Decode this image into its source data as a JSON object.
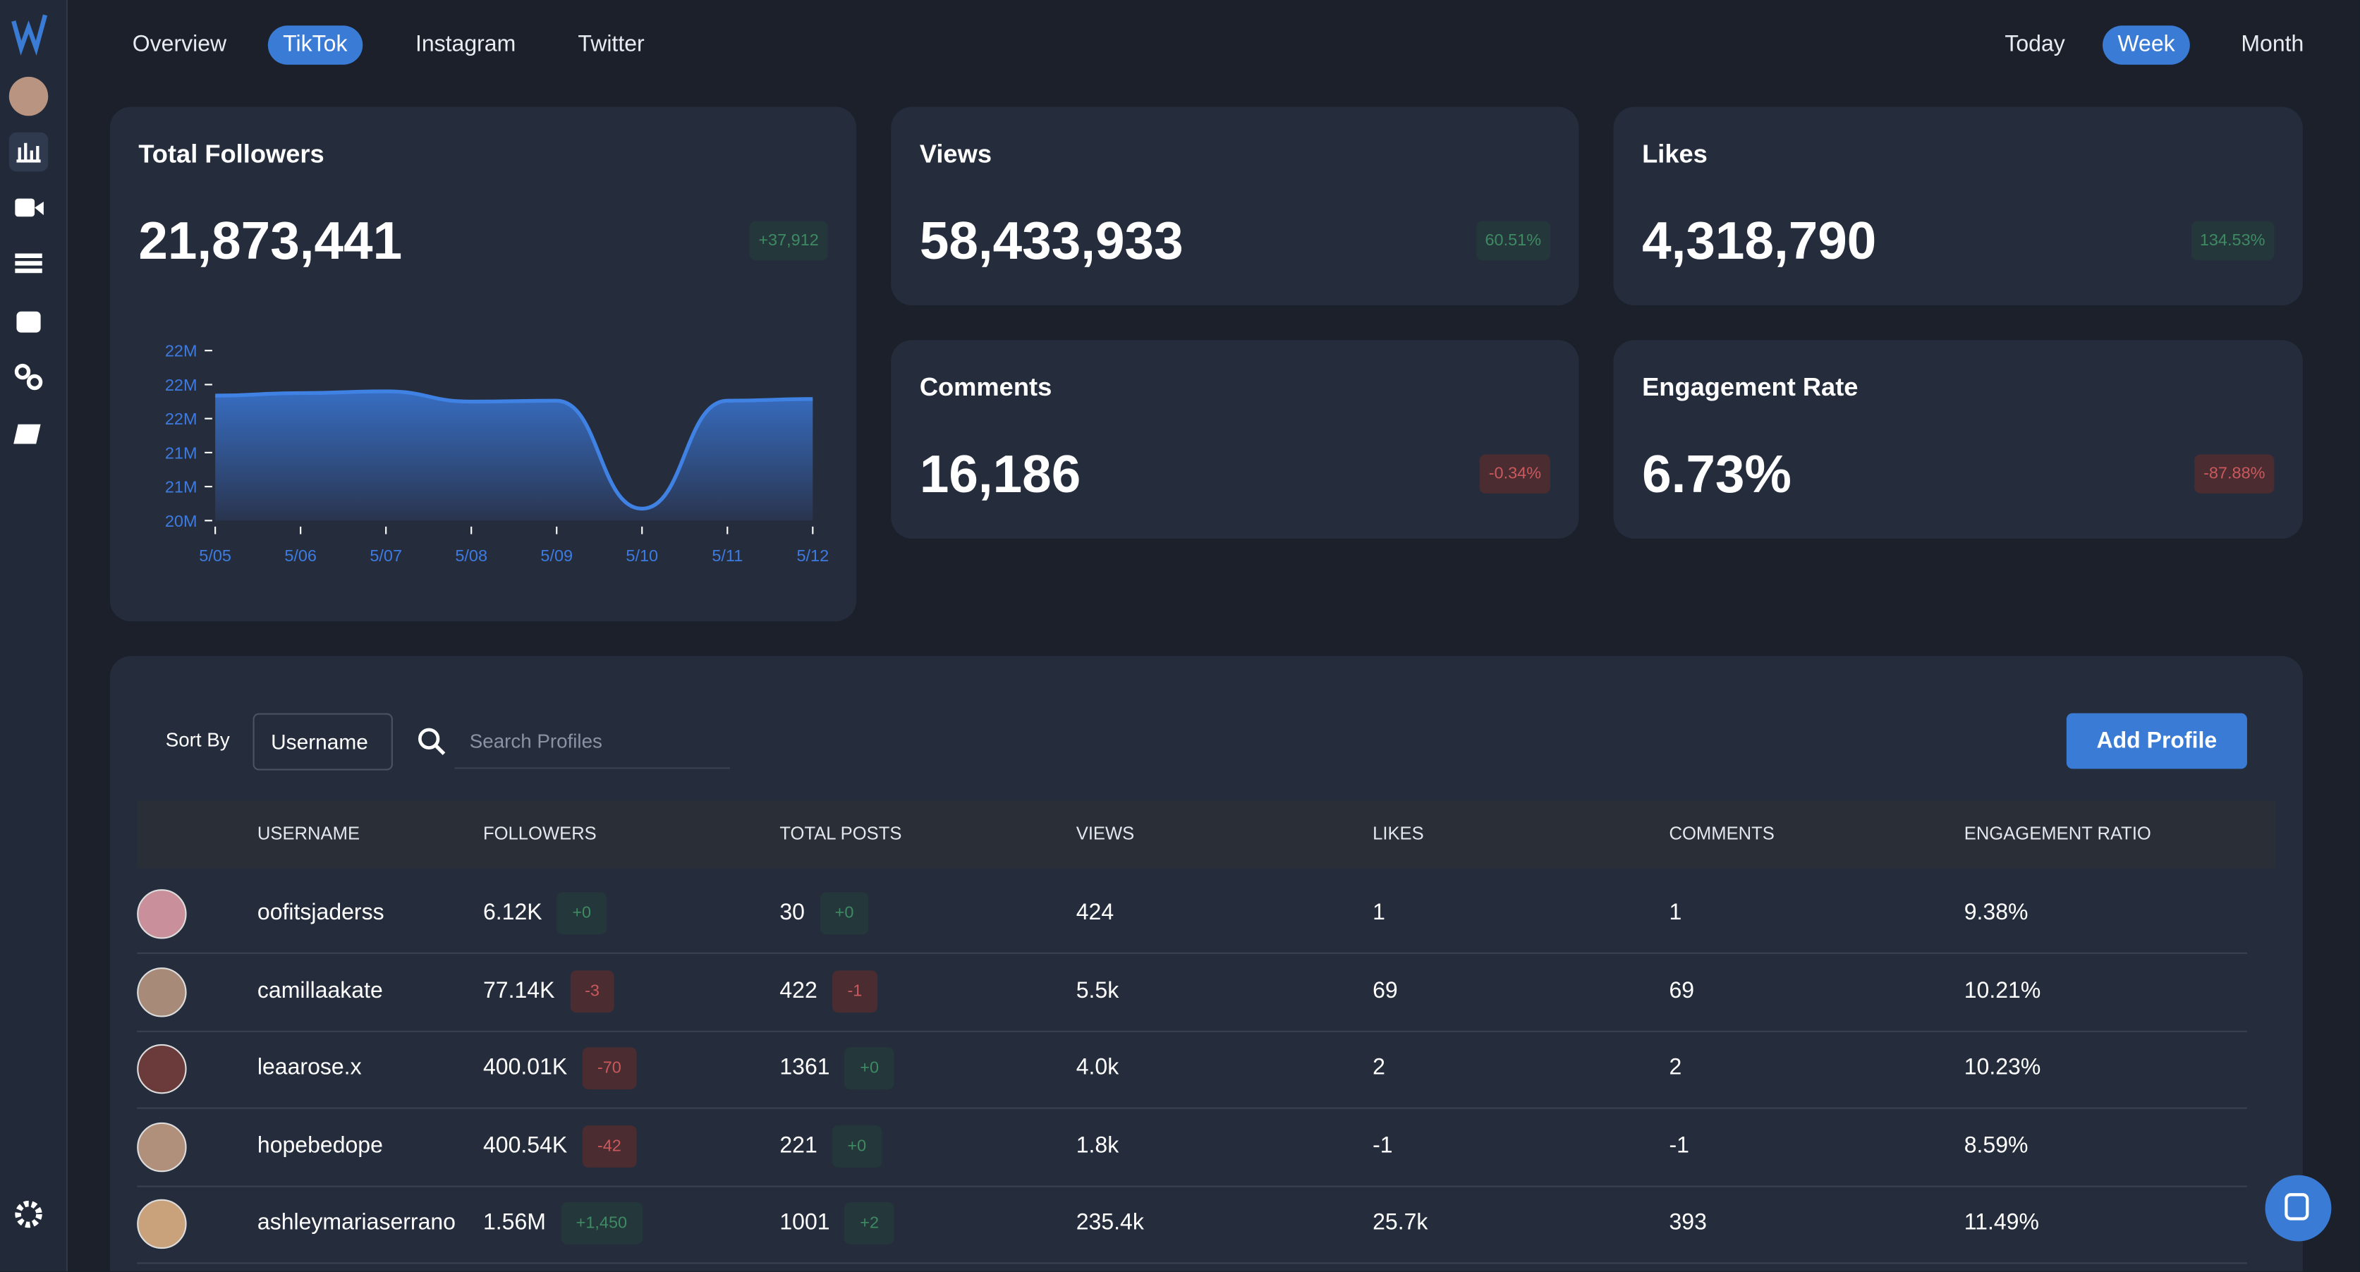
{
  "nav": {
    "platform_tabs": [
      "Overview",
      "TikTok",
      "Instagram",
      "Twitter"
    ],
    "active_platform": "TikTok",
    "period_tabs": [
      "Today",
      "Week",
      "Month"
    ],
    "active_period": "Week"
  },
  "cards": [
    {
      "title": "Total Followers",
      "value": "21,873,441",
      "change": "+37,912"
    },
    {
      "title": "Views",
      "value": "58,433,933",
      "change": "60.51%"
    },
    {
      "title": "Likes",
      "value": "4,318,790",
      "change": "134.53%"
    },
    {
      "title": "Comments",
      "value": "16,186",
      "change": "-0.34%"
    },
    {
      "title": "Engagement Rate",
      "value": "6.73%",
      "change": "-87.88%"
    }
  ],
  "chart_data": {
    "type": "line",
    "categories": [
      "5/05",
      "5/06",
      "5/07",
      "5/08",
      "5/09",
      "5/10",
      "5/11",
      "5/12"
    ],
    "values": [
      21.87,
      21.9,
      21.92,
      21.8,
      21.81,
      20.54,
      21.81,
      21.83
    ],
    "color": "#3f82e4",
    "ylim": [
      20.4,
      22.4
    ],
    "yticks": [
      {
        "value": 20.4,
        "label": "20M"
      },
      {
        "value": 20.8,
        "label": "21M"
      },
      {
        "value": 21.2,
        "label": "21M"
      },
      {
        "value": 21.6,
        "label": "22M"
      },
      {
        "value": 22.0,
        "label": "22M"
      },
      {
        "value": 22.4,
        "label": "22M"
      }
    ]
  },
  "table": {
    "controls": {
      "sort_label": "Sort By",
      "sort_value": "Username",
      "search_placeholder": "Search Profiles",
      "add_button": "Add Profile"
    },
    "columns": [
      "USERNAME",
      "FOLLOWERS",
      "TOTAL POSTS",
      "VIEWS",
      "LIKES",
      "COMMENTS",
      "ENGAGEMENT RATIO"
    ],
    "rows": [
      [
        "oofitsjaderss",
        "6.12K",
        "+0",
        "30",
        "+0",
        "424",
        "1",
        "1",
        "9.38%"
      ],
      [
        "camillaakate",
        "77.14K",
        "-3",
        "422",
        "-1",
        "5.5k",
        "69",
        "69",
        "10.21%"
      ],
      [
        "leaarose.x",
        "400.01K",
        "-70",
        "1361",
        "+0",
        "4.0k",
        "2",
        "2",
        "10.23%"
      ],
      [
        "hopebedope",
        "400.54K",
        "-42",
        "221",
        "+0",
        "1.8k",
        "-1",
        "-1",
        "8.59%"
      ],
      [
        "ashleymariaserrano",
        "1.56M",
        "+1,450",
        "1001",
        "+2",
        "235.4k",
        "25.7k",
        "393",
        "11.49%"
      ]
    ]
  }
}
